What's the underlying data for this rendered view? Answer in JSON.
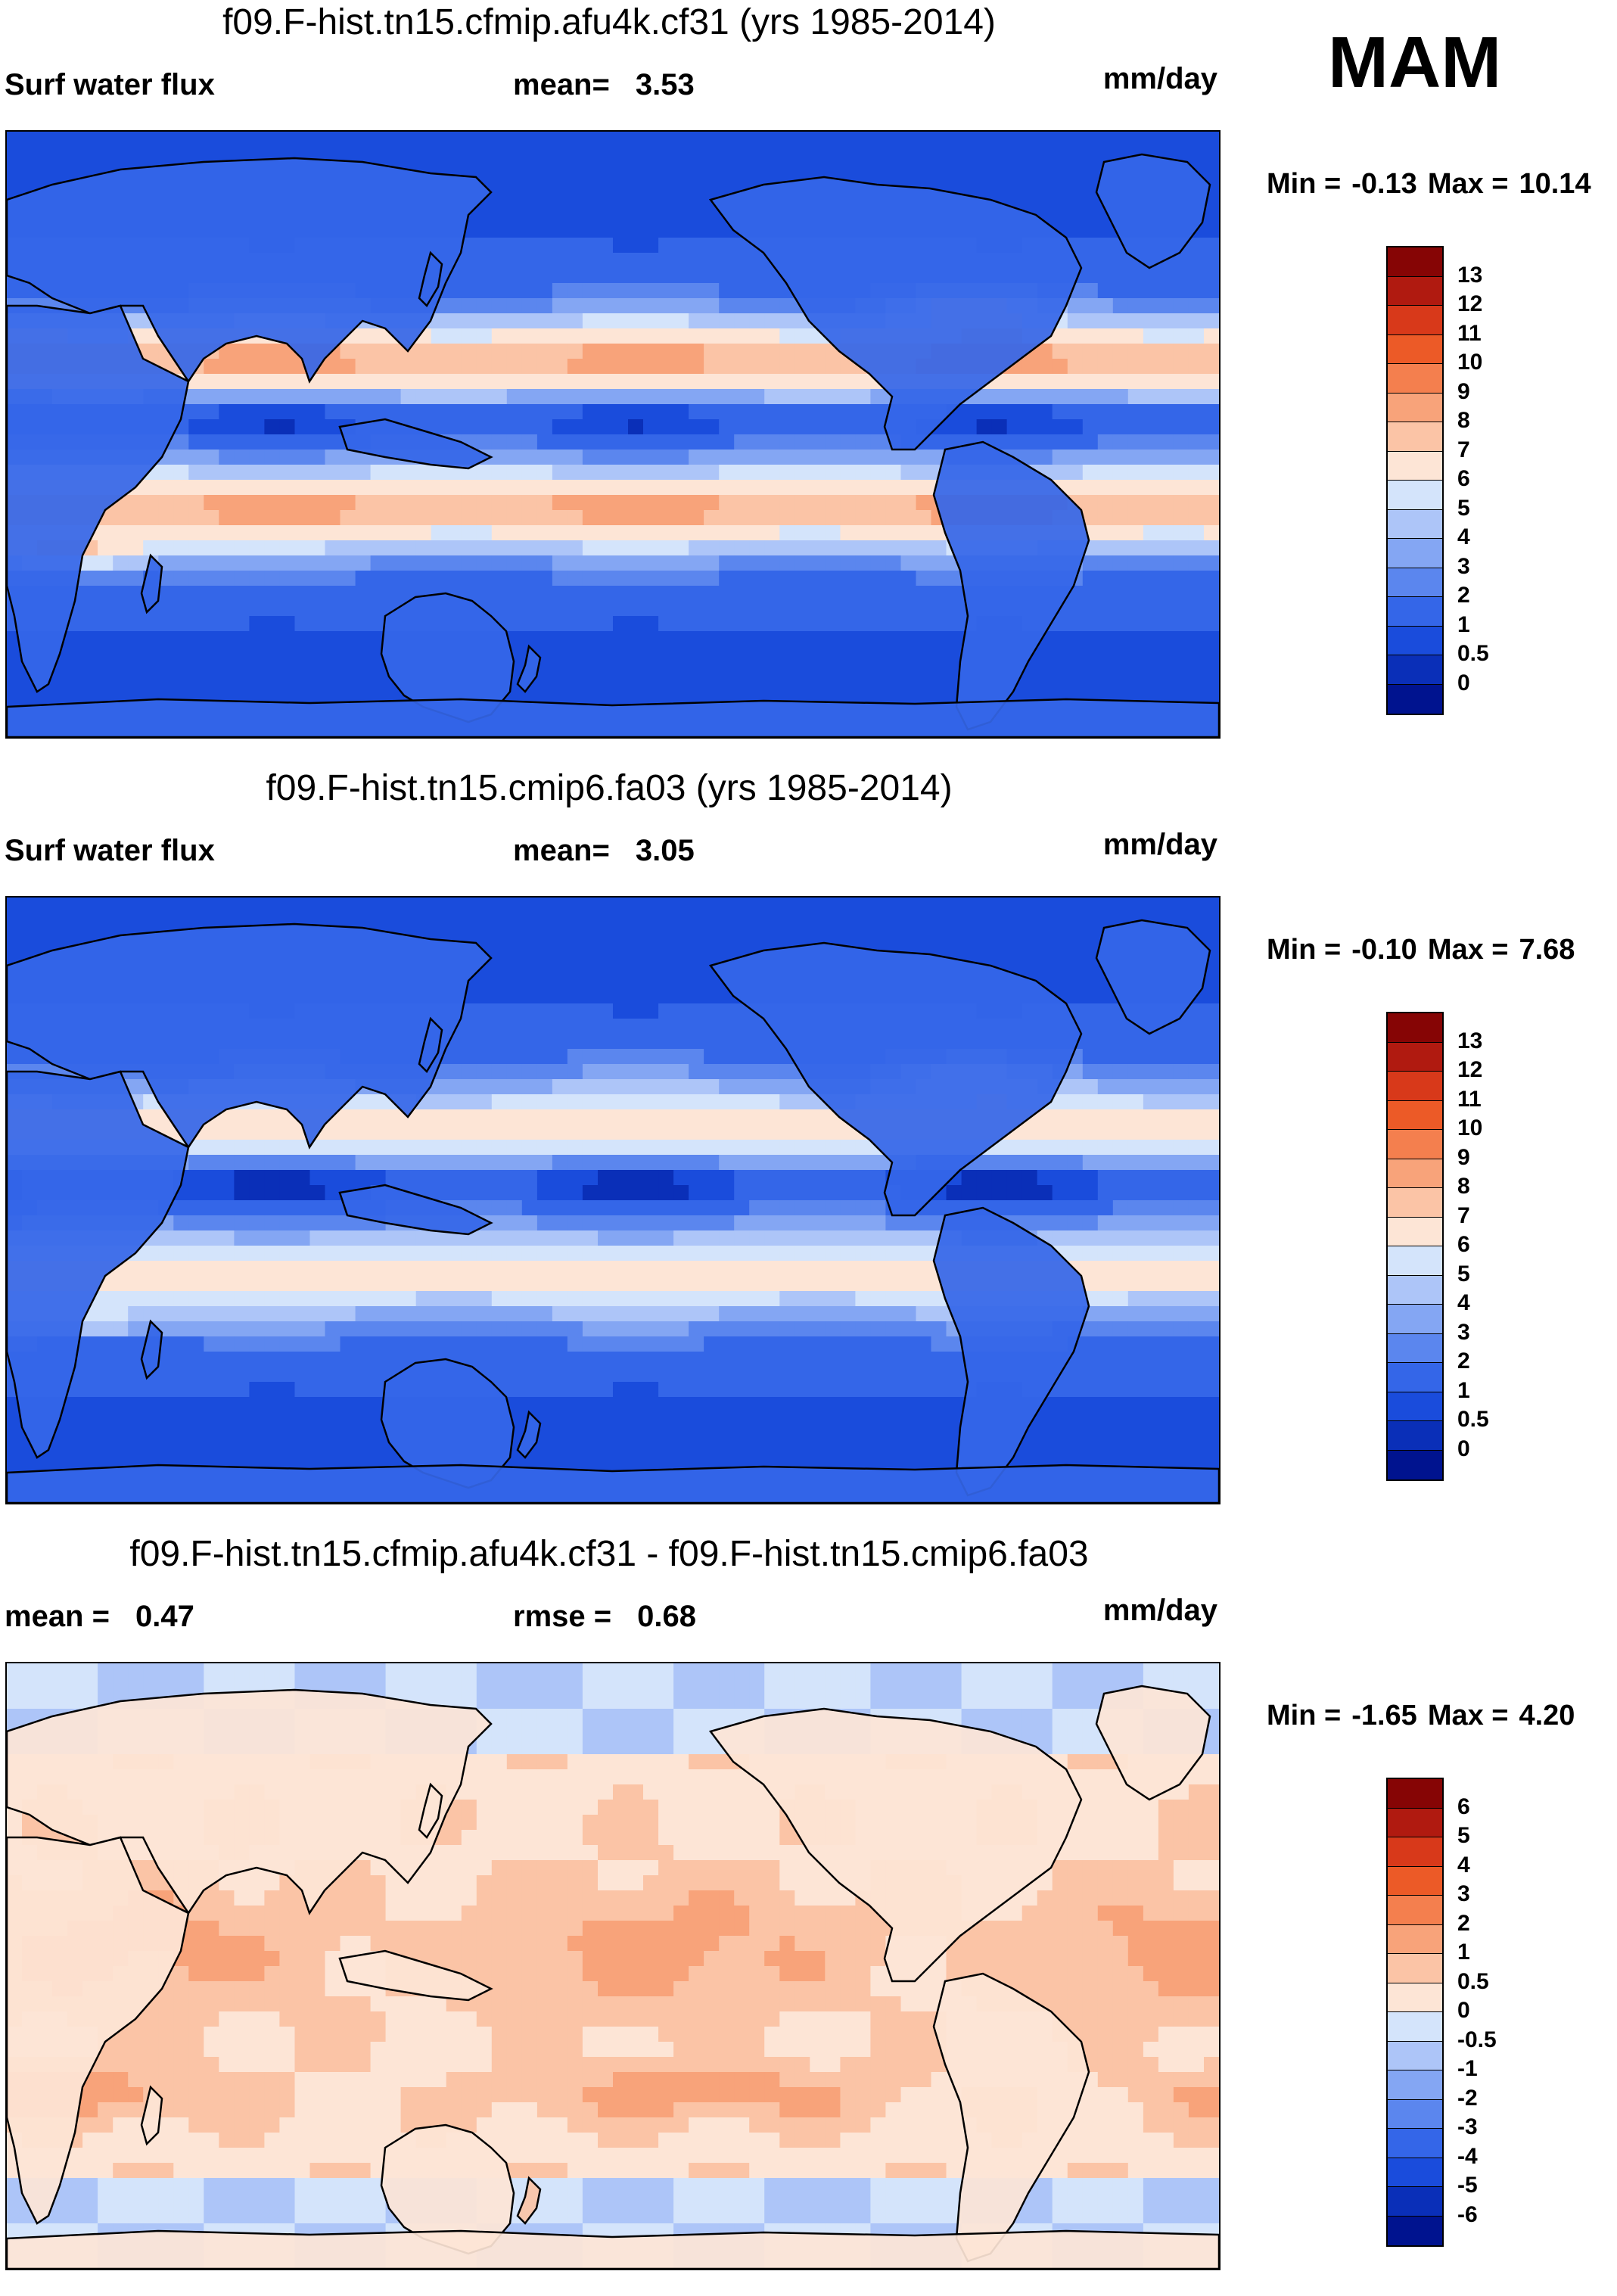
{
  "season": "MAM",
  "units": "mm/day",
  "panels": [
    {
      "title": "f09.F-hist.tn15.cfmip.afu4k.cf31 (yrs 1985-2014)",
      "left_text": "Surf water flux",
      "mid_label": "mean=",
      "mid_value": "3.53",
      "min_label": "Min =",
      "min_value": "-0.13",
      "max_label": "Max =",
      "max_value": "10.14"
    },
    {
      "title": "f09.F-hist.tn15.cmip6.fa03 (yrs 1985-2014)",
      "left_text": "Surf water flux",
      "mid_label": "mean=",
      "mid_value": "3.05",
      "min_label": "Min =",
      "min_value": "-0.10",
      "max_label": "Max =",
      "max_value": "7.68"
    },
    {
      "title": "f09.F-hist.tn15.cfmip.afu4k.cf31 - f09.F-hist.tn15.cmip6.fa03",
      "left_label": "mean =",
      "left_value": "0.47",
      "mid_label": "rmse =",
      "mid_value": "0.68",
      "min_label": "Min =",
      "min_value": "-1.65",
      "max_label": "Max =",
      "max_value": "4.20"
    }
  ],
  "chart_data": [
    {
      "type": "heatmap",
      "title": "f09.F-hist.tn15.cfmip.afu4k.cf31 (yrs 1985-2014)",
      "variable": "Surf water flux",
      "units": "mm/day",
      "mean": 3.53,
      "min": -0.13,
      "max": 10.14,
      "levels": [
        "0",
        "0.5",
        "1",
        "2",
        "3",
        "4",
        "5",
        "6",
        "7",
        "8",
        "9",
        "10",
        "11",
        "12",
        "13"
      ],
      "colors": [
        "#00138f",
        "#0a2fb8",
        "#1a4cdc",
        "#3466e8",
        "#5b86ee",
        "#84a6f3",
        "#adc5f8",
        "#d4e4fb",
        "#fde5d6",
        "#fbc4a6",
        "#f8a37a",
        "#f47f4e",
        "#ec5a27",
        "#d8391a",
        "#b01a10",
        "#860505"
      ]
    },
    {
      "type": "heatmap",
      "title": "f09.F-hist.tn15.cmip6.fa03 (yrs 1985-2014)",
      "variable": "Surf water flux",
      "units": "mm/day",
      "mean": 3.05,
      "min": -0.1,
      "max": 7.68,
      "levels": [
        "0",
        "0.5",
        "1",
        "2",
        "3",
        "4",
        "5",
        "6",
        "7",
        "8",
        "9",
        "10",
        "11",
        "12",
        "13"
      ],
      "colors": [
        "#00138f",
        "#0a2fb8",
        "#1a4cdc",
        "#3466e8",
        "#5b86ee",
        "#84a6f3",
        "#adc5f8",
        "#d4e4fb",
        "#fde5d6",
        "#fbc4a6",
        "#f8a37a",
        "#f47f4e",
        "#ec5a27",
        "#d8391a",
        "#b01a10",
        "#860505"
      ]
    },
    {
      "type": "heatmap",
      "title": "f09.F-hist.tn15.cfmip.afu4k.cf31 - f09.F-hist.tn15.cmip6.fa03",
      "units": "mm/day",
      "mean": 0.47,
      "rmse": 0.68,
      "min": -1.65,
      "max": 4.2,
      "levels": [
        "-6",
        "-5",
        "-4",
        "-3",
        "-2",
        "-1",
        "-0.5",
        "0",
        "0.5",
        "1",
        "2",
        "3",
        "4",
        "5",
        "6"
      ],
      "colors": [
        "#00138f",
        "#0a2fb8",
        "#1a4cdc",
        "#3466e8",
        "#5b86ee",
        "#84a6f3",
        "#adc5f8",
        "#d4e4fb",
        "#fde5d6",
        "#fbc4a6",
        "#f8a37a",
        "#f47f4e",
        "#ec5a27",
        "#d8391a",
        "#b01a10",
        "#860505"
      ]
    }
  ]
}
